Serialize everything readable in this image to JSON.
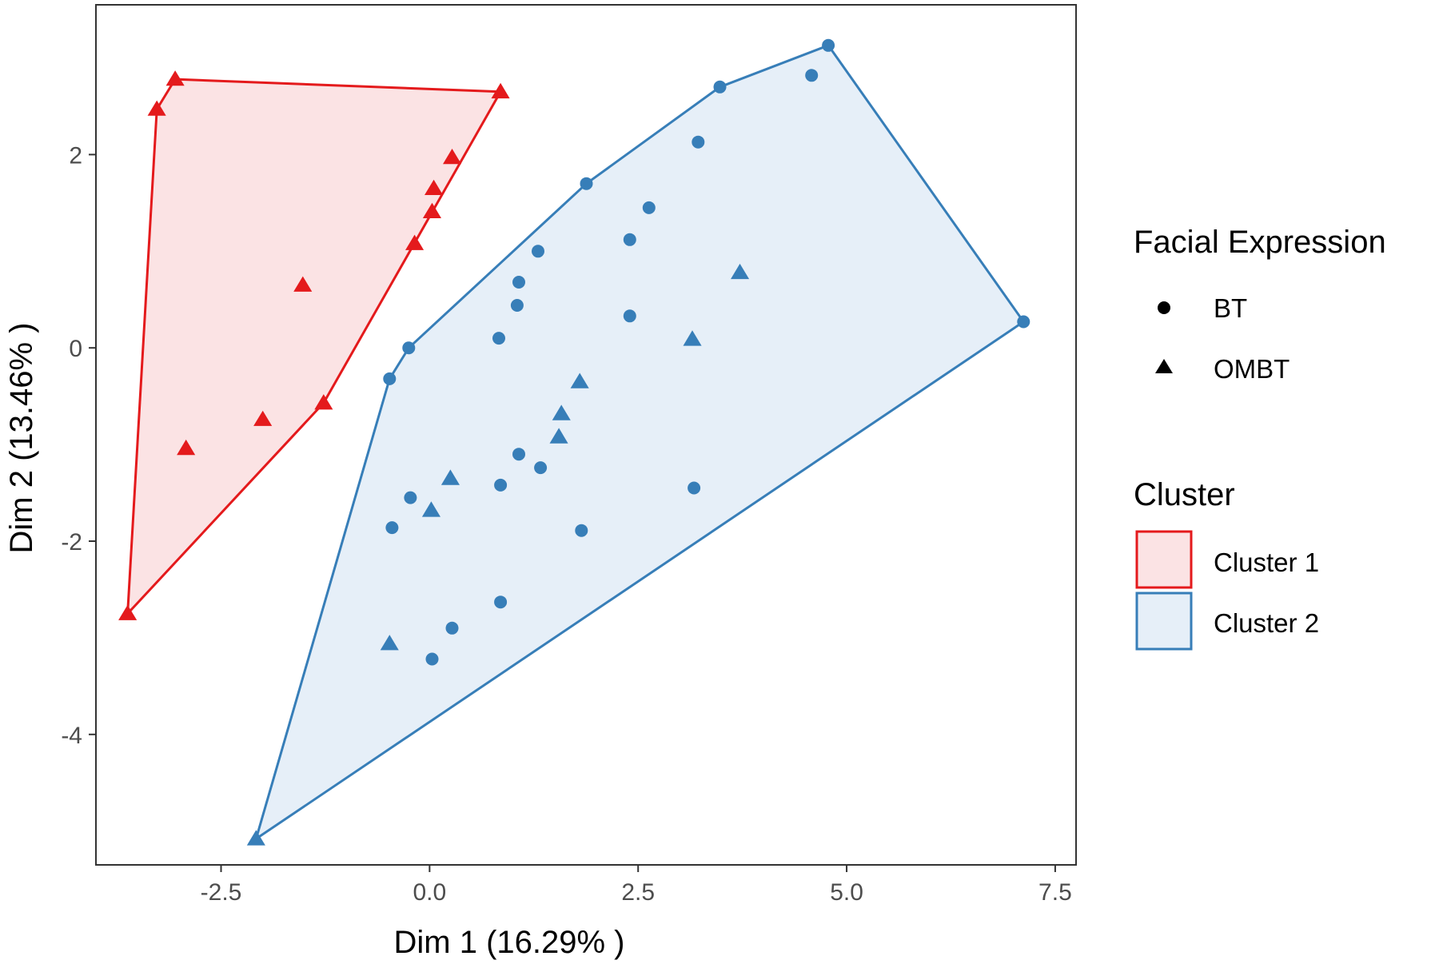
{
  "chart_data": {
    "type": "scatter",
    "title": "",
    "xlabel": "Dim 1 (16.29% )",
    "ylabel": "Dim 2 (13.46% )",
    "xlim": [
      -4.0,
      7.75
    ],
    "ylim": [
      -5.35,
      3.55
    ],
    "xticks": [
      -2.5,
      0.0,
      2.5,
      5.0,
      7.5
    ],
    "xtick_labels": [
      "-2.5",
      "0.0",
      "2.5",
      "5.0",
      "7.5"
    ],
    "yticks": [
      -4,
      -2,
      0,
      2
    ],
    "ytick_labels": [
      "-4",
      "-2",
      "0",
      "2"
    ],
    "grid": false,
    "legend_position": "right",
    "colors": {
      "cluster1": "#E41A1C",
      "cluster2": "#377EB8",
      "cluster1_fill": "#fbe3e4",
      "cluster2_fill": "#e6eff8"
    },
    "legend": {
      "shape_title": "Facial Expression",
      "shapes": [
        {
          "label": "BT",
          "shape": "circle"
        },
        {
          "label": "OMBT",
          "shape": "triangle"
        }
      ],
      "cluster_title": "Cluster",
      "clusters": [
        {
          "label": "Cluster 1",
          "color": "#E41A1C",
          "fill": "#fbe3e4"
        },
        {
          "label": "Cluster 2",
          "color": "#377EB8",
          "fill": "#e6eff8"
        }
      ]
    },
    "series": [
      {
        "name": "Cluster 1",
        "color": "#E41A1C",
        "hull": [
          [
            -3.62,
            -2.75
          ],
          [
            -3.27,
            2.47
          ],
          [
            -3.05,
            2.78
          ],
          [
            0.85,
            2.65
          ],
          [
            -1.27,
            -0.57
          ]
        ],
        "points": [
          {
            "x": -3.05,
            "y": 2.78,
            "shape": "triangle"
          },
          {
            "x": -3.27,
            "y": 2.47,
            "shape": "triangle"
          },
          {
            "x": 0.85,
            "y": 2.65,
            "shape": "triangle"
          },
          {
            "x": 0.27,
            "y": 1.97,
            "shape": "triangle"
          },
          {
            "x": 0.05,
            "y": 1.65,
            "shape": "triangle"
          },
          {
            "x": 0.03,
            "y": 1.41,
            "shape": "triangle"
          },
          {
            "x": -0.18,
            "y": 1.08,
            "shape": "triangle"
          },
          {
            "x": -1.52,
            "y": 0.65,
            "shape": "triangle"
          },
          {
            "x": -1.27,
            "y": -0.57,
            "shape": "triangle"
          },
          {
            "x": -2.0,
            "y": -0.74,
            "shape": "triangle"
          },
          {
            "x": -2.92,
            "y": -1.04,
            "shape": "triangle"
          },
          {
            "x": -3.62,
            "y": -2.75,
            "shape": "triangle"
          }
        ]
      },
      {
        "name": "Cluster 2",
        "color": "#377EB8",
        "hull": [
          [
            -2.08,
            -5.08
          ],
          [
            -0.48,
            -0.32
          ],
          [
            -0.25,
            0.0
          ],
          [
            1.88,
            1.7
          ],
          [
            3.48,
            2.7
          ],
          [
            4.78,
            3.13
          ],
          [
            7.12,
            0.27
          ]
        ],
        "points": [
          {
            "x": 4.78,
            "y": 3.13,
            "shape": "circle"
          },
          {
            "x": 4.58,
            "y": 2.82,
            "shape": "circle"
          },
          {
            "x": 3.48,
            "y": 2.7,
            "shape": "circle"
          },
          {
            "x": 3.22,
            "y": 2.13,
            "shape": "circle"
          },
          {
            "x": 1.88,
            "y": 1.7,
            "shape": "circle"
          },
          {
            "x": 2.63,
            "y": 1.45,
            "shape": "circle"
          },
          {
            "x": 2.4,
            "y": 1.12,
            "shape": "circle"
          },
          {
            "x": 1.3,
            "y": 1.0,
            "shape": "circle"
          },
          {
            "x": 1.07,
            "y": 0.68,
            "shape": "circle"
          },
          {
            "x": 1.05,
            "y": 0.44,
            "shape": "circle"
          },
          {
            "x": 2.4,
            "y": 0.33,
            "shape": "circle"
          },
          {
            "x": 0.83,
            "y": 0.1,
            "shape": "circle"
          },
          {
            "x": 7.12,
            "y": 0.27,
            "shape": "circle"
          },
          {
            "x": -0.25,
            "y": 0.0,
            "shape": "circle"
          },
          {
            "x": -0.48,
            "y": -0.32,
            "shape": "circle"
          },
          {
            "x": 3.72,
            "y": 0.78,
            "shape": "triangle"
          },
          {
            "x": 3.15,
            "y": 0.09,
            "shape": "triangle"
          },
          {
            "x": 1.8,
            "y": -0.35,
            "shape": "triangle"
          },
          {
            "x": 1.58,
            "y": -0.68,
            "shape": "triangle"
          },
          {
            "x": 1.55,
            "y": -0.92,
            "shape": "triangle"
          },
          {
            "x": 1.07,
            "y": -1.1,
            "shape": "circle"
          },
          {
            "x": 1.33,
            "y": -1.24,
            "shape": "circle"
          },
          {
            "x": 0.25,
            "y": -1.35,
            "shape": "triangle"
          },
          {
            "x": 0.85,
            "y": -1.42,
            "shape": "circle"
          },
          {
            "x": 3.17,
            "y": -1.45,
            "shape": "circle"
          },
          {
            "x": -0.23,
            "y": -1.55,
            "shape": "circle"
          },
          {
            "x": 0.02,
            "y": -1.68,
            "shape": "triangle"
          },
          {
            "x": -0.45,
            "y": -1.86,
            "shape": "circle"
          },
          {
            "x": 1.82,
            "y": -1.89,
            "shape": "circle"
          },
          {
            "x": 0.85,
            "y": -2.63,
            "shape": "circle"
          },
          {
            "x": 0.27,
            "y": -2.9,
            "shape": "circle"
          },
          {
            "x": -0.48,
            "y": -3.06,
            "shape": "triangle"
          },
          {
            "x": 0.03,
            "y": -3.22,
            "shape": "circle"
          },
          {
            "x": -2.08,
            "y": -5.08,
            "shape": "triangle"
          }
        ]
      }
    ]
  }
}
